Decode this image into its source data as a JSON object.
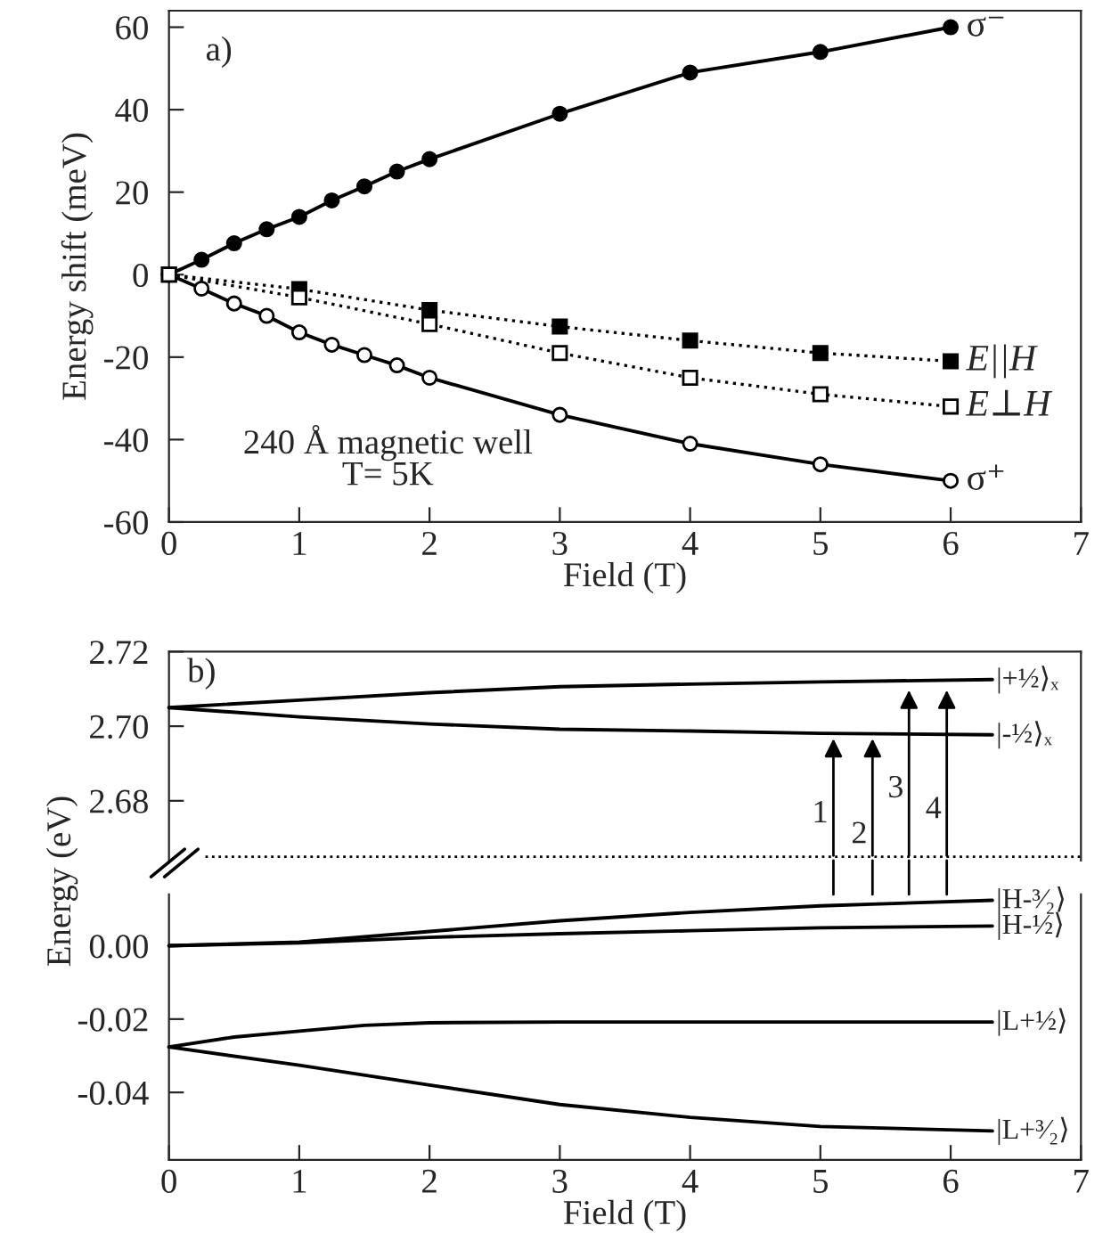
{
  "chart_data": [
    {
      "type": "line",
      "xlabel": "Field (T)",
      "ylabel": "Energy shift (meV)",
      "xlim": [
        0,
        7
      ],
      "ylim": [
        -60,
        64
      ],
      "xticks": [
        0,
        1,
        2,
        3,
        4,
        5,
        6,
        7
      ],
      "yticks": [
        -60,
        -40,
        -20,
        0,
        20,
        40,
        60
      ],
      "grid": false,
      "legend": false,
      "annotations": [
        "a)",
        "240 Å magnetic well\nT= 5K"
      ],
      "series": [
        {
          "name": "σ⁻",
          "color": "#000000",
          "marker": "circle",
          "line_style": "solid",
          "x": [
            0,
            0.25,
            0.5,
            0.75,
            1,
            1.25,
            1.5,
            1.75,
            2,
            3,
            4,
            5,
            6
          ],
          "values": [
            0,
            3.6,
            7.6,
            11,
            14,
            18,
            21.4,
            25,
            28,
            39,
            49,
            54,
            60
          ]
        },
        {
          "name": "σ⁺",
          "color": "#000000",
          "marker": "circle-open",
          "line_style": "solid",
          "x": [
            0,
            0.25,
            0.5,
            0.75,
            1,
            1.25,
            1.5,
            1.75,
            2,
            3,
            4,
            5,
            6
          ],
          "values": [
            0,
            -3.4,
            -7,
            -10,
            -14,
            -17,
            -19.5,
            -22,
            -25,
            -34,
            -41,
            -46,
            -50
          ]
        },
        {
          "name": "E||H",
          "color": "#000000",
          "marker": "square",
          "line_style": "dotted",
          "x": [
            0,
            1,
            2,
            3,
            4,
            5,
            6
          ],
          "values": [
            0,
            -3.5,
            -8.6,
            -12.6,
            -16,
            -19,
            -21
          ]
        },
        {
          "name": "E⊥H",
          "color": "#000000",
          "marker": "square-open",
          "line_style": "dotted",
          "x": [
            0,
            1,
            2,
            3,
            4,
            5,
            6
          ],
          "values": [
            0,
            -5.5,
            -12,
            -19,
            -25,
            -29,
            -32
          ]
        }
      ]
    },
    {
      "type": "line",
      "ylabel": "Energy (eV)",
      "xlim": [
        0,
        7
      ],
      "ylim": [
        2.664,
        2.72
      ],
      "yticks": [
        2.68,
        {
          "value": 2.7,
          "label": "2.70"
        },
        2.72
      ],
      "tick_labels": "y",
      "grid": false,
      "legend": false,
      "annotations": [
        "b)",
        {
          "text": "1",
          "x": 5.1,
          "y": 2.698
        },
        {
          "text": "2",
          "x": 5.4,
          "y": 2.698
        },
        {
          "text": "3",
          "x": 5.68,
          "y": 2.711
        },
        {
          "text": "4",
          "x": 5.97,
          "y": 2.711
        }
      ],
      "ref_lines": [
        {
          "axis": "y",
          "value": 2.665,
          "line_style": "dotted",
          "color": "#000000"
        }
      ],
      "series": [
        {
          "name": "|+½⟩ₓ",
          "color": "#000000",
          "x": [
            0,
            1,
            2,
            3,
            4,
            5,
            6.32
          ],
          "values": [
            2.705,
            2.707,
            2.709,
            2.7106,
            2.7113,
            2.7119,
            2.7125
          ]
        },
        {
          "name": "|-½⟩ₓ",
          "color": "#000000",
          "x": [
            0,
            1,
            2,
            3,
            4,
            5,
            6.32
          ],
          "values": [
            2.705,
            2.7025,
            2.7006,
            2.6992,
            2.6987,
            2.6981,
            2.6977
          ]
        }
      ]
    },
    {
      "type": "line",
      "xlabel": "Field (T)",
      "xlim": [
        0,
        7
      ],
      "ylim": [
        -0.0584,
        0.014
      ],
      "xticks": [
        0,
        1,
        2,
        3,
        4,
        5,
        6,
        7
      ],
      "yticks": [
        -0.04,
        -0.02,
        {
          "value": 0,
          "label": "0.00"
        }
      ],
      "grid": false,
      "legend": false,
      "series": [
        {
          "name": "|H-³⁄₂⟩",
          "color": "#000000",
          "x": [
            0,
            1,
            2,
            3,
            4,
            5,
            6.32
          ],
          "values": [
            0,
            0.001,
            0.0039,
            0.0068,
            0.0091,
            0.0109,
            0.0124
          ]
        },
        {
          "name": "|H-½⟩",
          "color": "#000000",
          "x": [
            0,
            1,
            2,
            3,
            4,
            5,
            6.32
          ],
          "values": [
            0,
            0.0008,
            0.0023,
            0.0033,
            0.0041,
            0.0049,
            0.0054
          ]
        },
        {
          "name": "|L+½⟩",
          "color": "#000000",
          "x": [
            0,
            0.5,
            1,
            1.5,
            2,
            3,
            4,
            5,
            6.32
          ],
          "values": [
            -0.0276,
            -0.0249,
            -0.0233,
            -0.0217,
            -0.021,
            -0.0208,
            -0.0208,
            -0.0208,
            -0.0208
          ]
        },
        {
          "name": "|L+³⁄₂⟩",
          "color": "#000000",
          "x": [
            0,
            1,
            2,
            3,
            4,
            5,
            6.32
          ],
          "values": [
            -0.0276,
            -0.0326,
            -0.038,
            -0.0433,
            -0.0468,
            -0.0493,
            -0.0505
          ]
        }
      ]
    }
  ]
}
